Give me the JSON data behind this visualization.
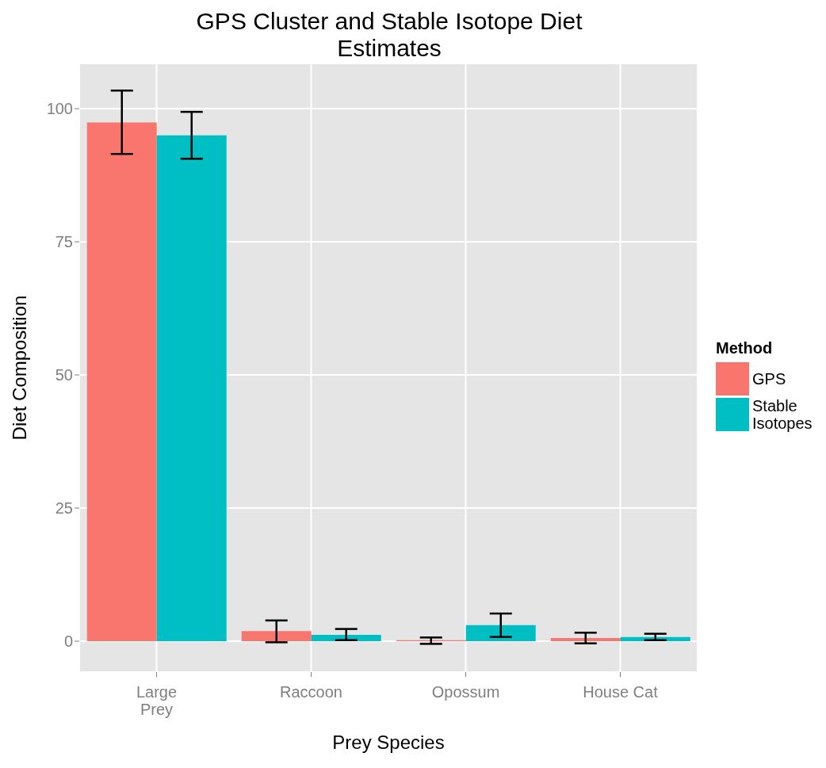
{
  "chart_data": {
    "type": "bar",
    "title": "GPS Cluster and Stable Isotope Diet Estimates",
    "xlabel": "Prey Species",
    "ylabel": "Diet Composition",
    "legend_title": "Method",
    "categories": [
      "Large Prey",
      "Raccoon",
      "Opossum",
      "House Cat"
    ],
    "series": [
      {
        "name": "GPS",
        "color": "#f8766d",
        "values": [
          97.4,
          1.9,
          0.2,
          0.6
        ],
        "errors": [
          [
            91.5,
            103.4
          ],
          [
            -0.2,
            3.9
          ],
          [
            -0.5,
            0.7
          ],
          [
            -0.4,
            1.6
          ]
        ]
      },
      {
        "name": "Stable Isotopes",
        "color": "#00bfc4",
        "values": [
          95.0,
          1.2,
          3.0,
          0.8
        ],
        "errors": [
          [
            90.6,
            99.4
          ],
          [
            0.2,
            2.3
          ],
          [
            0.8,
            5.2
          ],
          [
            0.2,
            1.4
          ]
        ]
      }
    ],
    "ylim": [
      -5.8,
      108.5
    ],
    "yticks": [
      0,
      25,
      50,
      75,
      100
    ],
    "grid": true,
    "legend": "right"
  }
}
